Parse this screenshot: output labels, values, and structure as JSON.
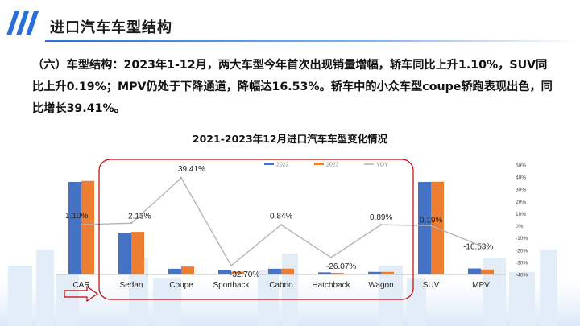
{
  "header": {
    "title": "进口汽车车型结构"
  },
  "description": "（六）车型结构：2023年1-12月，两大车型今年首次出现销量增幅，轿车同比上升1.10%，SUV同比上升0.19%；MPV仍处于下降通道，降幅达16.53%。轿车中的小众车型coupe轿跑表现出色，同比增长39.41%。",
  "colors": {
    "series_2022": "#4472c4",
    "series_2023": "#ed7d31",
    "yoy_line": "#b0b0b0",
    "highlight": "#c00000",
    "accent": "#2a6fd6"
  },
  "chart_data": {
    "type": "bar",
    "title": "2021-2023年12月进口汽车车型变化情况",
    "categories": [
      "CAR",
      "Sedan",
      "Coupe",
      "Sportback",
      "Cabrio",
      "Hatchback",
      "Wagon",
      "SUV",
      "MPV"
    ],
    "series": [
      {
        "name": "2022",
        "values": [
          100,
          45,
          6.2,
          4.5,
          6.2,
          2.3,
          2.8,
          100,
          6.5
        ]
      },
      {
        "name": "2023",
        "values": [
          101.1,
          46,
          8.6,
          3,
          6.3,
          1.7,
          2.8,
          100.2,
          5.4
        ]
      }
    ],
    "line_series": {
      "name": "YOY",
      "values": [
        1.1,
        2.13,
        39.41,
        -32.7,
        0.84,
        -26.07,
        0.89,
        0.19,
        -16.53
      ],
      "labels": [
        "1.10%",
        "2.13%",
        "39.41%",
        "-32.70%",
        "0.84%",
        "-26.07%",
        "0.89%",
        "0.19%",
        "-16.53%"
      ]
    },
    "y2_ticks": [
      "50%",
      "40%",
      "30%",
      "20%",
      "10%",
      "0%",
      "-10%",
      "-20%",
      "-30%",
      "-40%"
    ],
    "y2lim": [
      -40,
      50
    ],
    "ylim": [
      0,
      120
    ],
    "legend_position": "top"
  }
}
